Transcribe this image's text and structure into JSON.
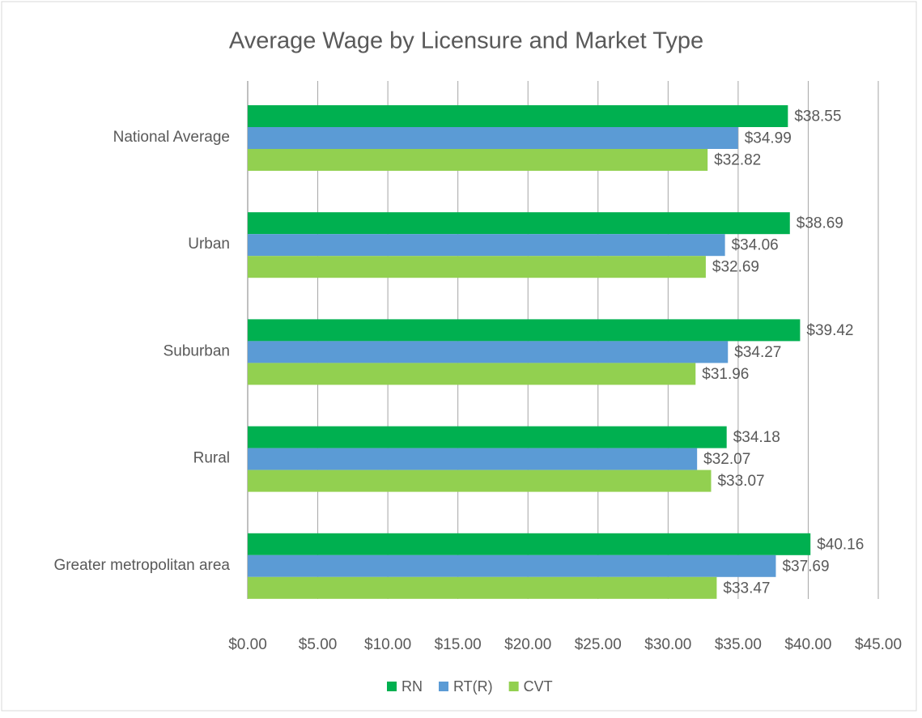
{
  "chart_data": {
    "type": "hbar",
    "title": "Average Wage by Licensure and Market Type",
    "categories": [
      "National Average",
      "Urban",
      "Suburban",
      "Rural",
      "Greater metropolitan area"
    ],
    "series": [
      {
        "name": "RN",
        "color": "#00b050",
        "values": [
          38.55,
          38.69,
          39.42,
          34.18,
          40.16
        ],
        "value_labels": [
          "$38.55",
          "$38.69",
          "$39.42",
          "$34.18",
          "$40.16"
        ]
      },
      {
        "name": "RT(R)",
        "color": "#5b9bd5",
        "values": [
          34.99,
          34.06,
          34.27,
          32.07,
          37.69
        ],
        "value_labels": [
          "$34.99",
          "$34.06",
          "$34.27",
          "$32.07",
          "$37.69"
        ]
      },
      {
        "name": "CVT",
        "color": "#92d050",
        "values": [
          32.82,
          32.69,
          31.96,
          33.07,
          33.47
        ],
        "value_labels": [
          "$32.82",
          "$32.69",
          "$31.96",
          "$33.07",
          "$33.47"
        ]
      }
    ],
    "xlim": [
      0,
      45
    ],
    "xticks": [
      {
        "value": 0,
        "label": "$0.00"
      },
      {
        "value": 5,
        "label": "$5.00"
      },
      {
        "value": 10,
        "label": "$10.00"
      },
      {
        "value": 15,
        "label": "$15.00"
      },
      {
        "value": 20,
        "label": "$20.00"
      },
      {
        "value": 25,
        "label": "$25.00"
      },
      {
        "value": 30,
        "label": "$30.00"
      },
      {
        "value": 35,
        "label": "$35.00"
      },
      {
        "value": 40,
        "label": "$40.00"
      },
      {
        "value": 45,
        "label": "$45.00"
      }
    ],
    "grid": true,
    "legend": "bottom"
  }
}
